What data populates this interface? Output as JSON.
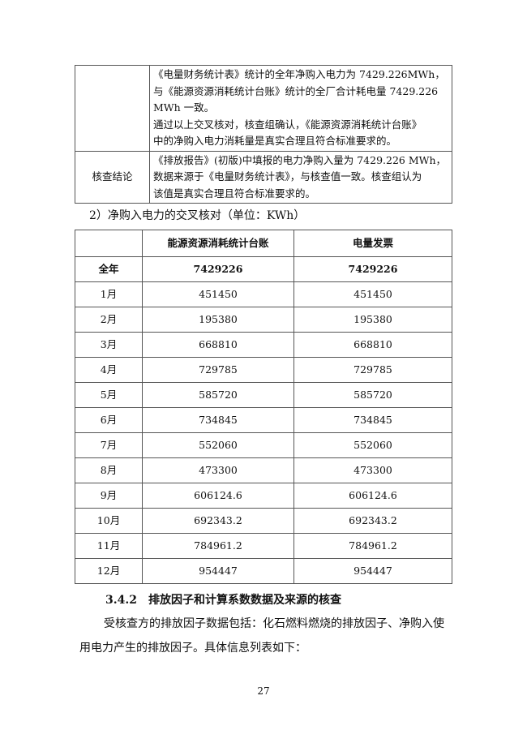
{
  "check_table": {
    "row1_lines": [
      "《电量财务统计表》统计的全年净购入电力为 7429.226MWh，",
      "与《能源资源消耗统计台账》统计的全厂合计耗电量 7429.226",
      "MWh 一致。",
      "通过以上交叉核对，核查组确认，《能源资源消耗统计台账》",
      "中的净购入电力消耗量是真实合理且符合标准要求的。"
    ],
    "conclusion_label": "核查结论",
    "conclusion_lines": [
      "《排放报告》(初版)中填报的电力净购入量为 7429.226 MWh，",
      "数据来源于《电量财务统计表》，与核查值一致。核查组认为",
      "该值是真实合理且符合标准要求的。"
    ]
  },
  "caption": "2）净购入电力的交叉核对（单位：KWh）",
  "cross_table": {
    "headers": [
      "",
      "能源资源消耗统计台账",
      "电量发票"
    ],
    "rows": [
      [
        "全年",
        "7429226",
        "7429226"
      ],
      [
        "1月",
        "451450",
        "451450"
      ],
      [
        "2月",
        "195380",
        "195380"
      ],
      [
        "3月",
        "668810",
        "668810"
      ],
      [
        "4月",
        "729785",
        "729785"
      ],
      [
        "5月",
        "585720",
        "585720"
      ],
      [
        "6月",
        "734845",
        "734845"
      ],
      [
        "7月",
        "552060",
        "552060"
      ],
      [
        "8月",
        "473300",
        "473300"
      ],
      [
        "9月",
        "606124.6",
        "606124.6"
      ],
      [
        "10月",
        "692343.2",
        "692343.2"
      ],
      [
        "11月",
        "784961.2",
        "784961.2"
      ],
      [
        "12月",
        "954447",
        "954447"
      ]
    ]
  },
  "section": {
    "number": "3.4.2",
    "title": "排放因子和计算系数数据及来源的核查"
  },
  "paragraph": "受核查方的排放因子数据包括：化石燃料燃烧的排放因子、净购入使用电力产生的排放因子。具体信息列表如下：",
  "page_number": "27"
}
